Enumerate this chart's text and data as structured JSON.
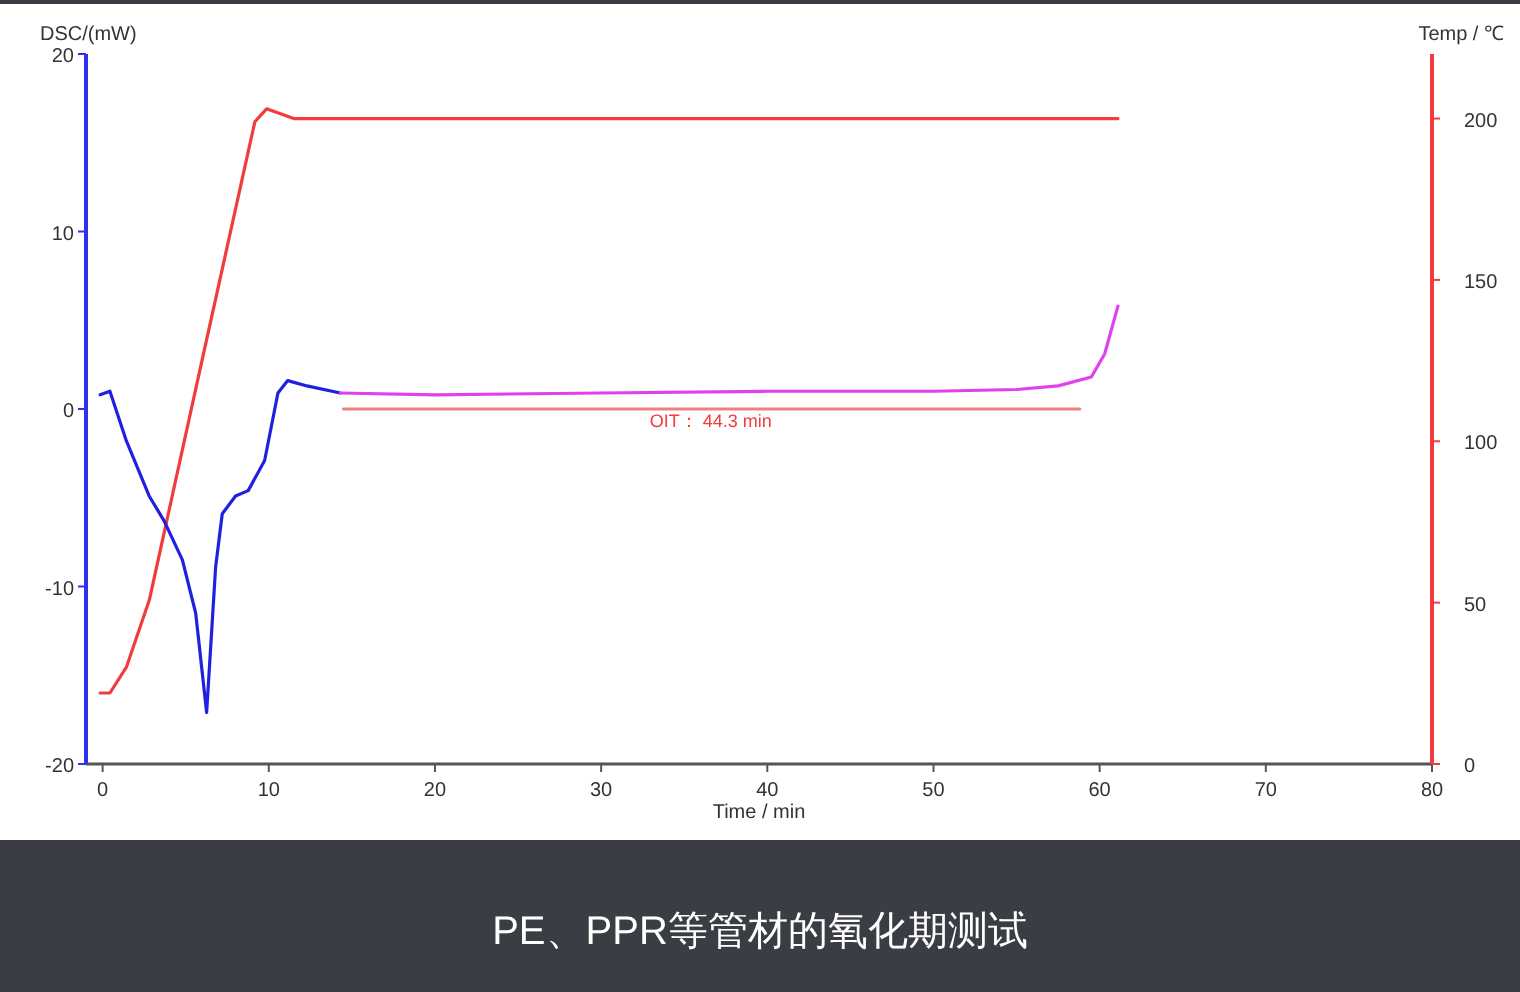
{
  "chart_data": {
    "type": "line",
    "xlabel": "Time / min",
    "ylabel": "DSC/(mW)",
    "y2label": "Temp / ℃",
    "xlim": [
      -1,
      80
    ],
    "xticks": [
      0,
      10,
      20,
      30,
      40,
      50,
      60,
      70,
      80
    ],
    "ylim": [
      -20,
      20
    ],
    "yticks": [
      -20,
      -10,
      0,
      10,
      20
    ],
    "y2lim": [
      0,
      220
    ],
    "y2ticks": [
      0,
      50,
      100,
      150,
      200
    ],
    "series": [
      {
        "axis": "y2",
        "color": "#f03c3c",
        "x": [
          -0.15,
          0.44,
          1.43,
          2.82,
          5.98,
          9.16,
          9.87,
          11.5,
          20,
          40,
          61.1
        ],
        "values": [
          22,
          22,
          30,
          51,
          125,
          199,
          203,
          200,
          200,
          200,
          200
        ]
      },
      {
        "axis": "y",
        "color": "#2020e0",
        "x": [
          -0.15,
          0.44,
          1.43,
          2.8,
          3.7,
          4.8,
          5.6,
          6.26,
          6.8,
          7.2,
          8.0,
          8.76,
          9.75,
          10.55,
          11.14,
          12.3,
          14.3
        ],
        "values": [
          0.8,
          1,
          -1.8,
          -4.9,
          -6.3,
          -8.5,
          -11.5,
          -17.1,
          -8.9,
          -5.9,
          -4.9,
          -4.6,
          -2.9,
          0.9,
          1.6,
          1.3,
          0.9
        ]
      },
      {
        "axis": "y",
        "color": "#e040f0",
        "x": [
          14.3,
          20,
          30,
          40,
          50,
          55,
          57.5,
          59.5,
          60.3,
          61.1
        ],
        "values": [
          0.9,
          0.8,
          0.9,
          1,
          1,
          1.1,
          1.3,
          1.8,
          3.1,
          5.8
        ]
      },
      {
        "axis": "y",
        "color": "#f08080",
        "x": [
          14.5,
          58.8
        ],
        "values": [
          0,
          0
        ]
      }
    ],
    "annotations": [
      {
        "text": "OIT：  44.3 min",
        "x": 36.6,
        "y": 0
      },
      "PE、PPR等管材的氧化期测试"
    ]
  }
}
